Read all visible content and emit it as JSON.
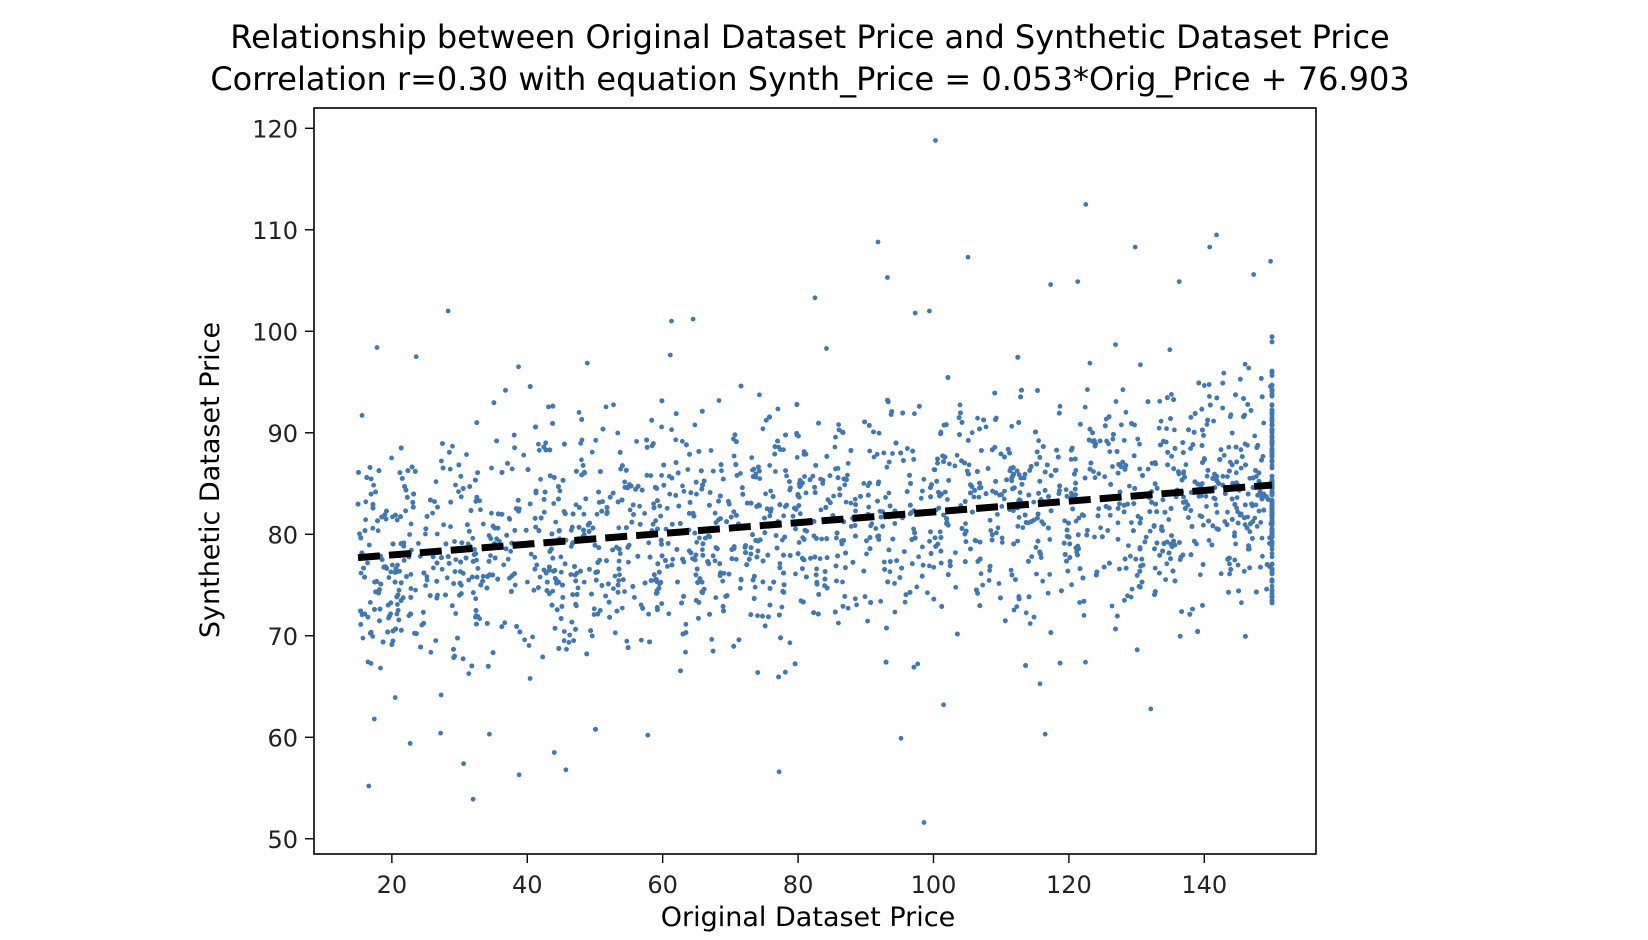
{
  "chart_data": {
    "type": "scatter",
    "title": "Relationship between Original Dataset Price and Synthetic Dataset Price",
    "subtitle": "Correlation r=0.30 with equation Synth_Price = 0.053*Orig_Price + 76.903",
    "xlabel": "Original Dataset Price",
    "ylabel": "Synthetic Dataset Price",
    "xlim": [
      8.5,
      156.5
    ],
    "ylim": [
      48.5,
      122
    ],
    "xticks": [
      20,
      40,
      60,
      80,
      100,
      120,
      140
    ],
    "yticks": [
      50,
      60,
      70,
      80,
      90,
      100,
      110,
      120
    ],
    "grid": false,
    "colors": {
      "points": "#3f78b5",
      "fit_line": "#000000"
    },
    "regression": {
      "slope": 0.053,
      "intercept": 76.903,
      "x_range": [
        15,
        150
      ]
    },
    "series": [
      {
        "values_generated": {
          "count": 3800,
          "x_range": [
            15,
            150
          ],
          "pile_at_x": 150,
          "pile_fraction": 0.07
        },
        "points": [
          [
            100.3,
            118.8
          ],
          [
            122.5,
            112.5
          ],
          [
            91.8,
            108.8
          ],
          [
            129.8,
            108.3
          ],
          [
            140.8,
            108.3
          ],
          [
            105.1,
            107.3
          ],
          [
            149.8,
            106.9
          ],
          [
            141.8,
            109.5
          ],
          [
            93.2,
            105.3
          ],
          [
            136.3,
            104.9
          ],
          [
            117.3,
            104.6
          ],
          [
            121.3,
            104.9
          ],
          [
            147.3,
            105.6
          ],
          [
            82.5,
            103.3
          ],
          [
            28.3,
            102.0
          ],
          [
            99.4,
            102.0
          ],
          [
            97.3,
            101.8
          ],
          [
            61.3,
            101.0
          ],
          [
            64.5,
            101.2
          ],
          [
            17.8,
            98.4
          ],
          [
            23.6,
            97.5
          ],
          [
            84.2,
            98.3
          ],
          [
            38.7,
            96.5
          ],
          [
            98.6,
            51.6
          ],
          [
            32.0,
            53.9
          ],
          [
            16.6,
            55.2
          ],
          [
            38.8,
            56.3
          ],
          [
            77.2,
            56.6
          ],
          [
            45.7,
            56.8
          ],
          [
            30.6,
            57.4
          ],
          [
            95.2,
            59.9
          ],
          [
            116.5,
            60.3
          ],
          [
            22.7,
            59.4
          ],
          [
            27.2,
            60.4
          ],
          [
            57.8,
            60.2
          ],
          [
            17.4,
            61.8
          ],
          [
            132.1,
            62.8
          ],
          [
            34.4,
            60.3
          ],
          [
            44.0,
            58.5
          ],
          [
            101.5,
            63.2
          ]
        ]
      }
    ]
  }
}
